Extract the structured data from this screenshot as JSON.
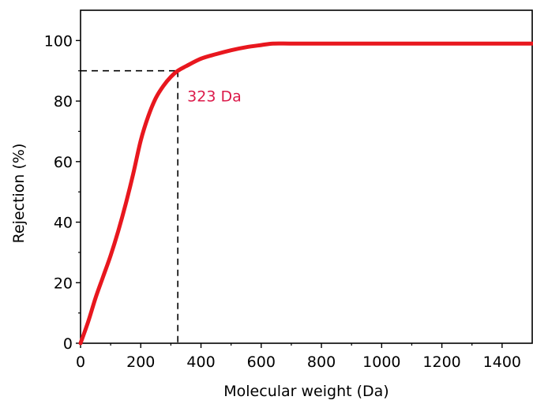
{
  "chart_data": {
    "type": "line",
    "xlabel": "Molecular weight (Da)",
    "ylabel": "Rejection (%)",
    "xlim": [
      0,
      1500
    ],
    "ylim": [
      0,
      110
    ],
    "x_ticks": [
      0,
      200,
      400,
      600,
      800,
      1000,
      1200,
      1400
    ],
    "y_ticks": [
      0,
      20,
      40,
      60,
      80,
      100
    ],
    "grid": false,
    "legend": "none",
    "series": [
      {
        "color": "#e8171e",
        "x": [
          0,
          25,
          50,
          75,
          100,
          125,
          150,
          175,
          200,
          225,
          250,
          275,
          300,
          323,
          350,
          400,
          450,
          500,
          550,
          600,
          640,
          700,
          800,
          900,
          1000,
          1100,
          1200,
          1300,
          1400,
          1500
        ],
        "y": [
          0,
          7,
          15,
          22,
          29,
          37,
          46,
          56,
          67,
          75,
          81,
          85,
          88,
          90,
          91.5,
          94,
          95.5,
          96.8,
          97.8,
          98.5,
          99,
          99,
          99,
          99,
          99,
          99,
          99,
          99,
          99,
          99
        ]
      }
    ],
    "annotations": [
      {
        "text": "323 Da",
        "x": 323,
        "y": 90,
        "color": "#dc1a4a"
      }
    ]
  }
}
